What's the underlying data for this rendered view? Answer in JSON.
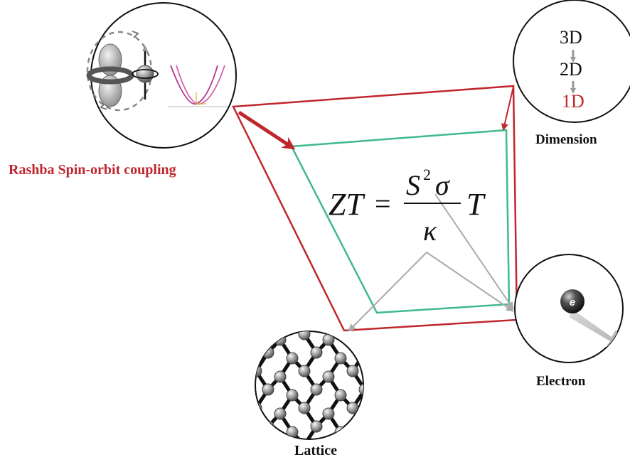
{
  "labels": {
    "rashba": "Rashba Spin-orbit coupling",
    "dimension": "Dimension",
    "electron": "Electron",
    "lattice": "Lattice"
  },
  "dimension_levels": [
    "3D",
    "2D",
    "1D"
  ],
  "electron_symbol": "e",
  "formula": {
    "lhs": "ZT",
    "equals": "=",
    "numerator_base": "S",
    "numerator_exp": "2",
    "numerator_sigma": "σ",
    "denominator": "κ",
    "rhs": "T"
  },
  "colors": {
    "red": "#c0262d",
    "green": "#3fba8a",
    "gray_arrow": "#aaaaaa",
    "text": "#111111",
    "accent_red_text": "#c0262d"
  }
}
